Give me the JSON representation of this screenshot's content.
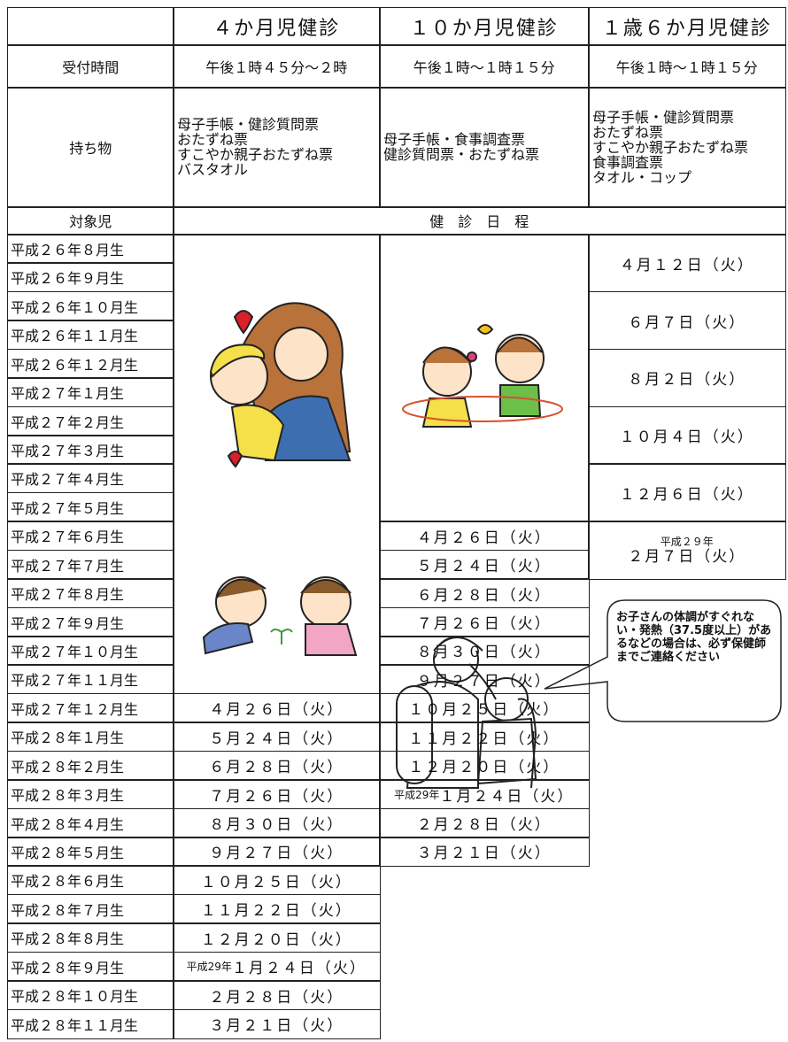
{
  "header": {
    "columns": [
      "４か月児健診",
      "１０か月児健診",
      "１歳６か月児健診"
    ]
  },
  "reception": {
    "label": "受付時間",
    "times": [
      "午後１時４５分～２時",
      "午後１時～１時１５分",
      "午後１時～１時１５分"
    ]
  },
  "belongings": {
    "label": "持ち物",
    "items": [
      [
        "母子手帳・健診質問票",
        "おたずね票",
        "すこやか親子おたずね票",
        "バスタオル"
      ],
      [
        "母子手帳・食事調査票",
        "健診質問票・おたずね票"
      ],
      [
        "母子手帳・健診質問票",
        "おたずね票",
        "すこやか親子おたずね票",
        "食事調査票",
        "タオル・コップ"
      ]
    ]
  },
  "target_label": "対象児",
  "schedule_label": "健　診　日　程",
  "birth_months": [
    "平成２６年８月生",
    "平成２６年９月生",
    "平成２６年１０月生",
    "平成２６年１１月生",
    "平成２６年１２月生",
    "平成２７年１月生",
    "平成２７年２月生",
    "平成２７年３月生",
    "平成２７年４月生",
    "平成２７年５月生",
    "平成２７年６月生",
    "平成２７年７月生",
    "平成２７年８月生",
    "平成２７年９月生",
    "平成２７年１０月生",
    "平成２７年１１月生",
    "平成２７年１２月生",
    "平成２８年１月生",
    "平成２８年２月生",
    "平成２８年３月生",
    "平成２８年４月生",
    "平成２８年５月生",
    "平成２８年６月生",
    "平成２８年７月生",
    "平成２８年８月生",
    "平成２８年９月生",
    "平成２８年１０月生",
    "平成２８年１１月生"
  ],
  "schedule": [
    [
      null,
      null,
      null,
      null,
      null,
      null,
      null,
      null,
      null,
      null,
      null,
      null,
      null,
      null,
      null,
      null,
      {
        "date": "４月２６日（火）"
      },
      {
        "date": "５月２４日（火）"
      },
      {
        "date": "６月２８日（火）"
      },
      {
        "date": "７月２６日（火）"
      },
      {
        "date": "８月３０日（火）"
      },
      {
        "date": "９月２７日（火）"
      },
      {
        "date": "１０月２５日（火）"
      },
      {
        "date": "１１月２２日（火）"
      },
      {
        "date": "１２月２０日（火）"
      },
      {
        "prefix": "平成29年",
        "date": "１月２４日（火）"
      },
      {
        "date": "２月２８日（火）"
      },
      {
        "date": "３月２１日（火）"
      }
    ],
    [
      null,
      null,
      null,
      null,
      null,
      null,
      null,
      null,
      null,
      null,
      {
        "date": "４月２６日（火）"
      },
      {
        "date": "５月２４日（火）"
      },
      {
        "date": "６月２８日（火）"
      },
      {
        "date": "７月２６日（火）"
      },
      {
        "date": "８月３０日（火）"
      },
      {
        "date": "９月２７日（火）"
      },
      {
        "date": "１０月２５日（火）"
      },
      {
        "date": "１１月２２日（火）"
      },
      {
        "date": "１２月２０日（火）"
      },
      {
        "prefix": "平成29年",
        "date": "１月２４日（火）"
      },
      {
        "date": "２月２８日（火）"
      },
      {
        "date": "３月２１日（火）"
      },
      null,
      null,
      null,
      null,
      null,
      null
    ],
    [
      {
        "date": "４月１２日（火）"
      },
      null,
      {
        "date": "６月７日（火）"
      },
      null,
      {
        "date": "８月２日（火）"
      },
      null,
      {
        "date": "１０月４日（火）"
      },
      null,
      {
        "date": "１２月６日（火）"
      },
      null,
      {
        "prefix": "平成２９年",
        "date": "２月７日（火）"
      },
      null,
      null,
      null,
      null,
      null,
      null,
      null,
      null,
      null,
      null,
      null,
      null,
      null,
      null,
      null,
      null,
      null
    ]
  ],
  "note": [
    "お子さんの体調がす",
    "ぐれない・発熱（",
    "37.5",
    "度以上",
    "）があるなど",
    "の場合は、必ず保健",
    "師までご連絡ください"
  ]
}
